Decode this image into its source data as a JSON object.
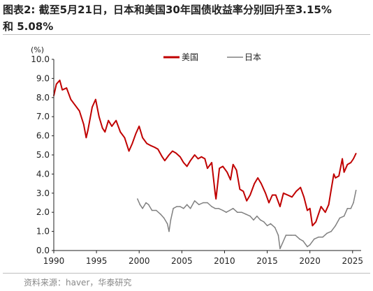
{
  "figure": {
    "title_line1": "图表2:   截至5月21日，日本和美国30年国债收益率分别回升至3.15%",
    "title_line2": "和 5.08%",
    "source": "资料来源：haver，华泰研究"
  },
  "chart_data": {
    "type": "line",
    "ylabel": "(%)",
    "ylim": [
      0,
      10
    ],
    "yticks": [
      "0.0",
      "1.0",
      "2.0",
      "3.0",
      "4.0",
      "5.0",
      "6.0",
      "7.0",
      "8.0",
      "9.0",
      "10.0"
    ],
    "xlim": [
      1990,
      2026
    ],
    "xticks": [
      "1990",
      "1995",
      "2000",
      "2005",
      "2010",
      "2015",
      "2020",
      "2025"
    ],
    "grid": false,
    "legend_position": "top-center",
    "series": [
      {
        "name": "美国",
        "color": "#c00000",
        "x": [
          1990.0,
          1990.3,
          1990.7,
          1991.0,
          1991.5,
          1992.0,
          1992.5,
          1993.0,
          1993.5,
          1993.8,
          1994.0,
          1994.5,
          1994.9,
          1995.3,
          1995.7,
          1996.0,
          1996.4,
          1996.8,
          1997.3,
          1997.8,
          1998.3,
          1998.8,
          1999.2,
          1999.6,
          2000.0,
          2000.4,
          2000.9,
          2001.3,
          2001.8,
          2002.2,
          2002.7,
          2003.0,
          2003.5,
          2003.9,
          2004.3,
          2004.8,
          2005.2,
          2005.6,
          2006.0,
          2006.5,
          2006.9,
          2007.3,
          2007.7,
          2008.0,
          2008.5,
          2008.9,
          2009.0,
          2009.4,
          2009.8,
          2010.3,
          2010.7,
          2011.0,
          2011.4,
          2011.8,
          2012.2,
          2012.6,
          2013.0,
          2013.5,
          2013.9,
          2014.3,
          2014.8,
          2015.2,
          2015.6,
          2016.0,
          2016.5,
          2016.9,
          2017.4,
          2017.9,
          2018.4,
          2018.9,
          2019.3,
          2019.7,
          2020.0,
          2020.3,
          2020.7,
          2021.0,
          2021.3,
          2021.8,
          2022.2,
          2022.5,
          2022.8,
          2023.0,
          2023.4,
          2023.8,
          2024.0,
          2024.4,
          2024.8,
          2025.1,
          2025.4
        ],
        "values": [
          8.1,
          8.7,
          8.9,
          8.4,
          8.5,
          7.9,
          7.6,
          7.3,
          6.6,
          5.9,
          6.3,
          7.5,
          7.9,
          7.0,
          6.4,
          6.2,
          6.8,
          6.5,
          6.8,
          6.2,
          5.9,
          5.2,
          5.6,
          6.1,
          6.5,
          5.9,
          5.6,
          5.5,
          5.4,
          5.3,
          4.9,
          4.7,
          5.0,
          5.2,
          5.1,
          4.9,
          4.6,
          4.4,
          4.7,
          5.0,
          4.8,
          4.9,
          4.8,
          4.3,
          4.6,
          3.0,
          2.7,
          4.3,
          4.4,
          4.1,
          3.7,
          4.5,
          4.2,
          3.2,
          3.1,
          2.6,
          2.9,
          3.5,
          3.8,
          3.5,
          3.0,
          2.5,
          2.9,
          2.9,
          2.3,
          3.0,
          2.9,
          2.8,
          3.1,
          3.3,
          2.8,
          2.1,
          2.2,
          1.3,
          1.5,
          1.9,
          2.3,
          2.0,
          2.4,
          3.2,
          4.0,
          3.8,
          3.9,
          4.8,
          4.1,
          4.5,
          4.6,
          4.8,
          5.08
        ]
      },
      {
        "name": "日本",
        "color": "#808080",
        "x": [
          1999.8,
          2000.1,
          2000.4,
          2000.8,
          2001.1,
          2001.5,
          2002.0,
          2002.5,
          2002.9,
          2003.3,
          2003.5,
          2003.7,
          2004.0,
          2004.4,
          2004.8,
          2005.2,
          2005.6,
          2006.0,
          2006.5,
          2007.0,
          2007.5,
          2008.0,
          2008.5,
          2008.9,
          2009.3,
          2009.8,
          2010.2,
          2010.6,
          2011.0,
          2011.5,
          2012.0,
          2012.5,
          2013.0,
          2013.4,
          2013.8,
          2014.2,
          2014.6,
          2015.0,
          2015.4,
          2015.9,
          2016.3,
          2016.5,
          2016.8,
          2017.2,
          2017.8,
          2018.3,
          2018.8,
          2019.2,
          2019.7,
          2020.0,
          2020.5,
          2021.0,
          2021.5,
          2022.0,
          2022.5,
          2023.0,
          2023.5,
          2024.0,
          2024.4,
          2024.8,
          2025.1,
          2025.4
        ],
        "values": [
          2.7,
          2.4,
          2.2,
          2.5,
          2.4,
          2.1,
          2.1,
          1.9,
          1.7,
          1.4,
          1.0,
          1.6,
          2.2,
          2.3,
          2.3,
          2.2,
          2.4,
          2.2,
          2.6,
          2.4,
          2.5,
          2.5,
          2.3,
          2.2,
          2.2,
          2.1,
          2.0,
          2.1,
          2.2,
          2.0,
          2.0,
          1.9,
          1.8,
          1.6,
          1.8,
          1.6,
          1.5,
          1.3,
          1.4,
          1.2,
          0.8,
          0.1,
          0.4,
          0.8,
          0.8,
          0.8,
          0.6,
          0.5,
          0.2,
          0.3,
          0.6,
          0.7,
          0.7,
          0.9,
          1.0,
          1.3,
          1.7,
          1.8,
          2.2,
          2.2,
          2.5,
          3.15
        ]
      }
    ]
  }
}
